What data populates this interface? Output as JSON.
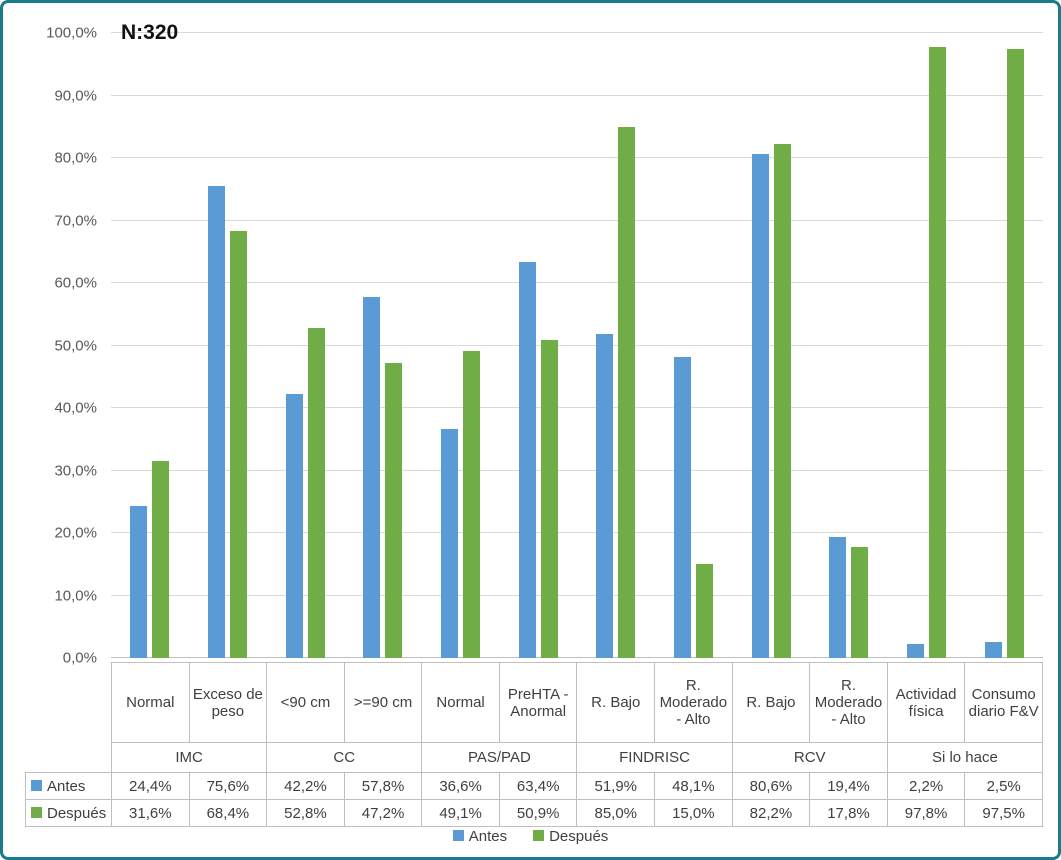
{
  "annotation": "N:320",
  "colors": {
    "frame_border": "#1b7a8c",
    "gridline": "#d9d9d9",
    "axis_line": "#bfbfbf",
    "axis_text": "#595959",
    "table_text": "#404040",
    "antes_blue": "#5B9BD5",
    "despues_green": "#70AD47"
  },
  "chart_data": {
    "type": "bar",
    "title": "",
    "xlabel": "",
    "ylabel": "",
    "ylim": [
      0,
      100
    ],
    "ytick_step": 10,
    "ytick_labels": [
      "0,0%",
      "10,0%",
      "20,0%",
      "30,0%",
      "40,0%",
      "50,0%",
      "60,0%",
      "70,0%",
      "80,0%",
      "90,0%",
      "100,0%"
    ],
    "grid": true,
    "legend_position": "bottom",
    "categories": [
      {
        "label": "Normal",
        "group": "IMC"
      },
      {
        "label": "Exceso de peso",
        "group": "IMC"
      },
      {
        "label": "<90 cm",
        "group": "CC"
      },
      {
        "label": ">=90 cm",
        "group": "CC"
      },
      {
        "label": "Normal",
        "group": "PAS/PAD"
      },
      {
        "label": "PreHTA - Anormal",
        "group": "PAS/PAD"
      },
      {
        "label": "R. Bajo",
        "group": "FINDRISC"
      },
      {
        "label": "R. Moderado - Alto",
        "group": "FINDRISC"
      },
      {
        "label": "R. Bajo",
        "group": "RCV"
      },
      {
        "label": "R. Moderado - Alto",
        "group": "RCV"
      },
      {
        "label": "Actividad física",
        "group": "Si lo hace"
      },
      {
        "label": "Consumo diario F&V",
        "group": "Si lo hace"
      }
    ],
    "groups": [
      {
        "label": "IMC",
        "span": 2
      },
      {
        "label": "CC",
        "span": 2
      },
      {
        "label": "PAS/PAD",
        "span": 2
      },
      {
        "label": "FINDRISC",
        "span": 2
      },
      {
        "label": "RCV",
        "span": 2
      },
      {
        "label": "Si lo hace",
        "span": 2
      }
    ],
    "series": [
      {
        "name": "Antes",
        "key": "antes",
        "color": "#5B9BD5",
        "values": [
          24.4,
          75.6,
          42.2,
          57.8,
          36.6,
          63.4,
          51.9,
          48.1,
          80.6,
          19.4,
          2.2,
          2.5
        ],
        "display": [
          "24,4%",
          "75,6%",
          "42,2%",
          "57,8%",
          "36,6%",
          "63,4%",
          "51,9%",
          "48,1%",
          "80,6%",
          "19,4%",
          "2,2%",
          "2,5%"
        ]
      },
      {
        "name": "Después",
        "key": "despues",
        "color": "#70AD47",
        "values": [
          31.6,
          68.4,
          52.8,
          47.2,
          49.1,
          50.9,
          85.0,
          15.0,
          82.2,
          17.8,
          97.8,
          97.5
        ],
        "display": [
          "31,6%",
          "68,4%",
          "52,8%",
          "47,2%",
          "49,1%",
          "50,9%",
          "85,0%",
          "15,0%",
          "82,2%",
          "17,8%",
          "97,8%",
          "97,5%"
        ]
      }
    ]
  },
  "legend": {
    "items": [
      {
        "label": "Antes",
        "key": "antes",
        "color": "#5B9BD5"
      },
      {
        "label": "Después",
        "key": "despues",
        "color": "#70AD47"
      }
    ]
  }
}
